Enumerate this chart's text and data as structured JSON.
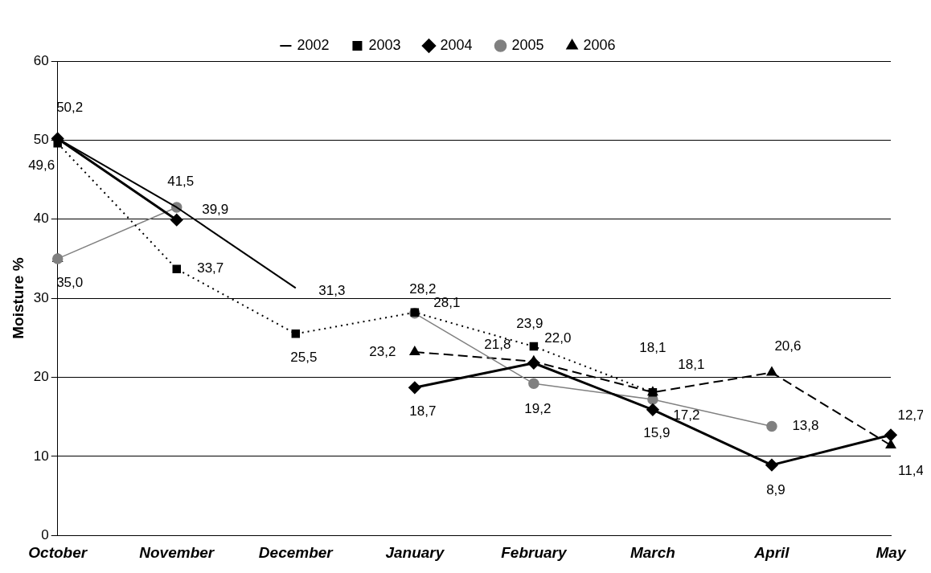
{
  "chart_data": {
    "type": "line",
    "ylabel": "Moisture %",
    "categories": [
      "October",
      "November",
      "December",
      "January",
      "February",
      "March",
      "April",
      "May"
    ],
    "series": [
      {
        "name": "2002",
        "color": "#000000",
        "line_style": "solid",
        "marker": "none",
        "values": [
          50.2,
          41.5,
          31.3,
          null,
          null,
          null,
          null,
          null
        ],
        "value_labels": [
          null,
          null,
          "31,3",
          null,
          null,
          null,
          null,
          null
        ]
      },
      {
        "name": "2003",
        "color": "#000000",
        "line_style": "dotted",
        "marker": "square",
        "values": [
          49.6,
          33.7,
          25.5,
          28.2,
          23.9,
          18.1,
          null,
          null
        ],
        "value_labels": [
          "49,6",
          "33,7",
          "25,5",
          "28,2",
          "23,9",
          "18,1",
          null,
          null
        ]
      },
      {
        "name": "2004",
        "color": "#000000",
        "line_style": "solid",
        "marker": "diamond",
        "values": [
          50.2,
          39.9,
          null,
          18.7,
          21.8,
          15.9,
          8.9,
          12.7
        ],
        "value_labels": [
          "50,2",
          "39,9",
          null,
          "18,7",
          "21,8",
          "15,9",
          "8,9",
          "12,7"
        ]
      },
      {
        "name": "2005",
        "color": "#808080",
        "line_style": "solid",
        "marker": "circle",
        "values": [
          35.0,
          41.5,
          null,
          28.1,
          19.2,
          17.2,
          13.8,
          null
        ],
        "value_labels": [
          null,
          "41,5",
          null,
          "28,1",
          "19,2",
          "17,2",
          "13,8",
          null
        ]
      },
      {
        "name": "2006",
        "color": "#000000",
        "line_style": "dashed",
        "marker": "triangle",
        "values": [
          35.0,
          null,
          null,
          23.2,
          22.0,
          18.1,
          20.6,
          11.4
        ],
        "value_labels": [
          "35,0",
          null,
          null,
          "23,2",
          "22,0",
          "18,1",
          "20,6",
          "11,4"
        ]
      }
    ],
    "ylim": [
      0,
      60
    ],
    "yticks": [
      0,
      10,
      20,
      30,
      40,
      50,
      60
    ],
    "grid": "y",
    "legend": "top"
  }
}
